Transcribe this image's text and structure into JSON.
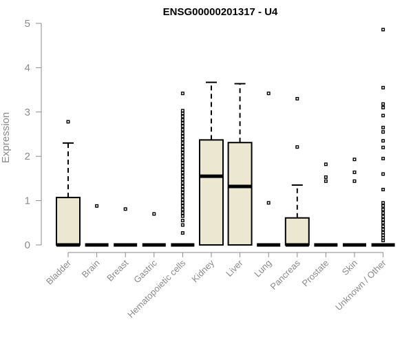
{
  "chart_data": {
    "type": "boxplot",
    "title": "ENSG00000201317 - U4",
    "xlabel": "",
    "ylabel": "Expression",
    "ylim": [
      0,
      5
    ],
    "yticks": [
      0,
      1,
      2,
      3,
      4,
      5
    ],
    "grid": false,
    "categories": [
      "Bladder",
      "Brain",
      "Breast",
      "Gastric",
      "Hematopoietic cells",
      "Kidney",
      "Liver",
      "Lung",
      "Pancreas",
      "Prostate",
      "Skin",
      "Unknown / Other"
    ],
    "boxes": [
      {
        "q1": 0,
        "median": 0,
        "q3": 1.07,
        "whisker_low": 0,
        "whisker_high": 2.3,
        "outliers": [
          2.78
        ]
      },
      {
        "q1": 0,
        "median": 0,
        "q3": 0,
        "whisker_low": 0,
        "whisker_high": 0,
        "outliers": [
          0.88
        ]
      },
      {
        "q1": 0,
        "median": 0,
        "q3": 0,
        "whisker_low": 0,
        "whisker_high": 0,
        "outliers": [
          0.81
        ]
      },
      {
        "q1": 0,
        "median": 0,
        "q3": 0,
        "whisker_low": 0,
        "whisker_high": 0,
        "outliers": [
          0.7
        ]
      },
      {
        "q1": 0,
        "median": 0,
        "q3": 0,
        "whisker_low": 0,
        "whisker_high": 0,
        "outliers": [
          0.27,
          0.45,
          0.55,
          0.65,
          0.72,
          0.8,
          0.88,
          0.95,
          1.02,
          1.1,
          1.18,
          1.25,
          1.32,
          1.4,
          1.48,
          1.55,
          1.63,
          1.7,
          1.78,
          1.85,
          1.92,
          2.0,
          2.08,
          2.15,
          2.22,
          2.3,
          2.38,
          2.45,
          2.52,
          2.6,
          2.68,
          2.75,
          2.82,
          2.9,
          2.97,
          3.03,
          3.42
        ]
      },
      {
        "q1": 0,
        "median": 1.55,
        "q3": 2.37,
        "whisker_low": 0,
        "whisker_high": 3.67,
        "outliers": []
      },
      {
        "q1": 0,
        "median": 1.32,
        "q3": 2.31,
        "whisker_low": 0,
        "whisker_high": 3.64,
        "outliers": []
      },
      {
        "q1": 0,
        "median": 0,
        "q3": 0,
        "whisker_low": 0,
        "whisker_high": 0,
        "outliers": [
          0.95,
          3.42
        ]
      },
      {
        "q1": 0,
        "median": 0,
        "q3": 0.61,
        "whisker_low": 0,
        "whisker_high": 1.35,
        "outliers": [
          2.21,
          3.3
        ]
      },
      {
        "q1": 0,
        "median": 0,
        "q3": 0,
        "whisker_low": 0,
        "whisker_high": 0,
        "outliers": [
          1.44,
          1.53,
          1.82
        ]
      },
      {
        "q1": 0,
        "median": 0,
        "q3": 0,
        "whisker_low": 0,
        "whisker_high": 0,
        "outliers": [
          1.44,
          1.64,
          1.93
        ]
      },
      {
        "q1": 0,
        "median": 0,
        "q3": 0,
        "whisker_low": 0,
        "whisker_high": 0,
        "outliers": [
          0.1,
          0.16,
          0.22,
          0.28,
          0.35,
          0.42,
          0.5,
          0.57,
          0.64,
          0.72,
          0.8,
          0.88,
          0.95,
          1.25,
          1.6,
          1.95,
          2.2,
          2.35,
          2.55,
          2.65,
          2.92,
          3.1,
          3.18,
          3.55,
          4.86
        ]
      }
    ]
  }
}
